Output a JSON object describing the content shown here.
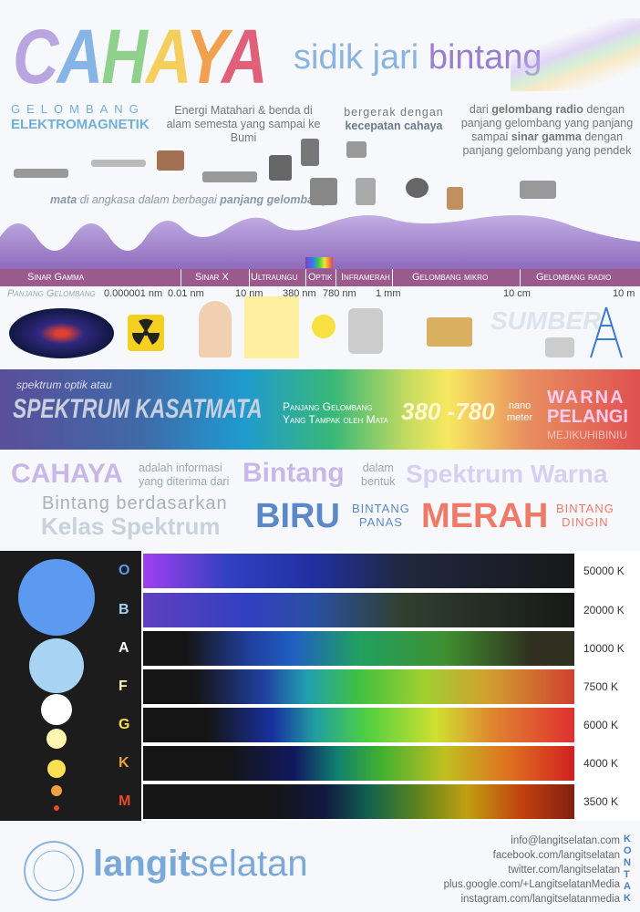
{
  "title": {
    "letters": [
      "C",
      "A",
      "H",
      "A",
      "Y",
      "A"
    ],
    "colors": [
      "#b9a6e0",
      "#86b4e4",
      "#8fd08c",
      "#f4cf5e",
      "#f1a050",
      "#e0607a"
    ],
    "subtitle_a": "sidik jari ",
    "subtitle_b": "bintang"
  },
  "intro": {
    "g1": "GELOMBANG",
    "g2": "ELEKTROMAGNETIK",
    "energy": "Energi Matahari & benda di alam semesta yang sampai ke Bumi",
    "move_a": "bergerak dengan",
    "move_b": "kecepatan cahaya",
    "range_1": "dari ",
    "range_2": "gelombang radio",
    "range_3": " dengan panjang gelombang yang panjang sampai ",
    "range_4": "sinar gamma",
    "range_5": " dengan panjang gelombang yang pendek",
    "eyes_1": "mata",
    "eyes_2": " di angkasa dalam berbagai ",
    "eyes_3": "panjang gelombang"
  },
  "bands": [
    "Sinar Gamma",
    "Sinar X",
    "Ultraungu",
    "Optik",
    "Inframerah",
    "Gelombang mikro",
    "Gelombang radio"
  ],
  "wavelength_label": "Panjang Gelombang",
  "wavelengths": [
    "0.000001 nm",
    "0.01 nm",
    "10 nm",
    "380 nm",
    "780 nm",
    "1 mm",
    "10 cm",
    "10 m"
  ],
  "sumber": "SUMBER",
  "visible": {
    "small": "spektrum optik atau",
    "big": "SPEKTRUM KASATMATA",
    "desc1": "Panjang Gelombang",
    "desc2": "Yang Tampak oleh Mata",
    "range": "380 -780",
    "unit1": "nano",
    "unit2": "meter",
    "warna": "WARNA",
    "pelangi": "PELANGI",
    "mejikuhibiniu": "MEJIKUHIBINIU"
  },
  "info": {
    "cahaya": "CAHAYA",
    "adalah1": "adalah informasi",
    "adalah2": "yang diterima dari",
    "bintang": "Bintang",
    "dalam1": "dalam",
    "dalam2": "bentuk",
    "spektrum_warna": "Spektrum Warna",
    "berdasarkan": "Bintang berdasarkan",
    "kelas": "Kelas Spektrum",
    "biru": "BIRU",
    "panas1": "BINTANG",
    "panas2": "PANAS",
    "merah": "MERAH",
    "dingin1": "BINTANG",
    "dingin2": "DINGIN"
  },
  "classes": [
    {
      "letter": "O",
      "temp": "50000 K",
      "color": "#5b9af0"
    },
    {
      "letter": "B",
      "temp": "20000 K",
      "color": "#a8d4f4"
    },
    {
      "letter": "A",
      "temp": "10000 K",
      "color": "#ffffff"
    },
    {
      "letter": "F",
      "temp": "7500 K",
      "color": "#fff6b0"
    },
    {
      "letter": "G",
      "temp": "6000 K",
      "color": "#f8e050"
    },
    {
      "letter": "K",
      "temp": "4000 K",
      "color": "#f0a040"
    },
    {
      "letter": "M",
      "temp": "3500 K",
      "color": "#e84a2a"
    }
  ],
  "footer": {
    "brand_a": "langit",
    "brand_b": "selatan",
    "contacts": [
      "info@langitselatan.com",
      "facebook.com/langitselatan",
      "twitter.com/langitselatan",
      "plus.google.com/+LangitselatanMedia",
      "instagram.com/langitselatanmedia"
    ],
    "kontak": "KONTAK"
  }
}
